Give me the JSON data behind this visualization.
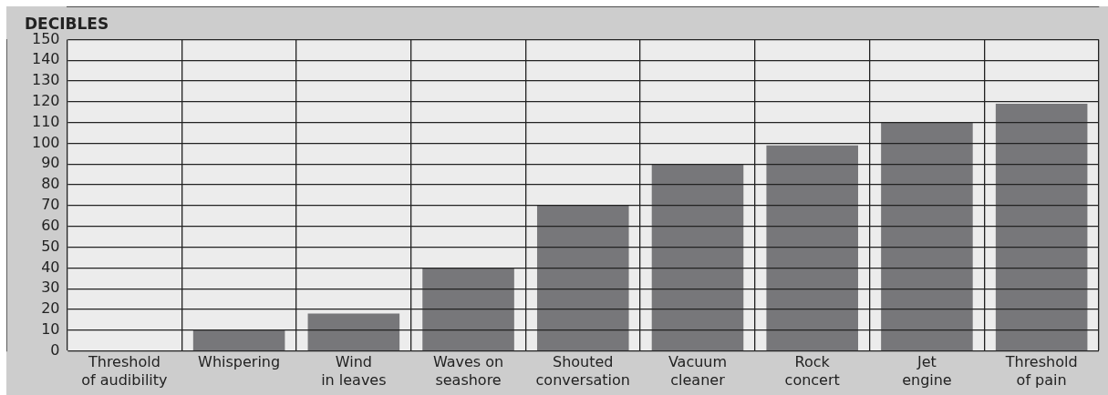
{
  "chart_data": {
    "type": "bar",
    "title": "DECIBLES",
    "categories": [
      "Threshold\nof audibility",
      "Whispering",
      "Wind\nin leaves",
      "Waves on\nseashore",
      "Shouted\nconversation",
      "Vacuum\ncleaner",
      "Rock\nconcert",
      "Jet\nengine",
      "Threshold\nof pain"
    ],
    "values": [
      0,
      10,
      18,
      40,
      70,
      90,
      99,
      110,
      119
    ],
    "color": "#77777a",
    "ylim": [
      0,
      150
    ],
    "yticks": [
      0,
      10,
      20,
      30,
      40,
      50,
      60,
      70,
      80,
      90,
      100,
      110,
      120,
      130,
      140,
      150
    ],
    "grid": true,
    "legend": false
  }
}
